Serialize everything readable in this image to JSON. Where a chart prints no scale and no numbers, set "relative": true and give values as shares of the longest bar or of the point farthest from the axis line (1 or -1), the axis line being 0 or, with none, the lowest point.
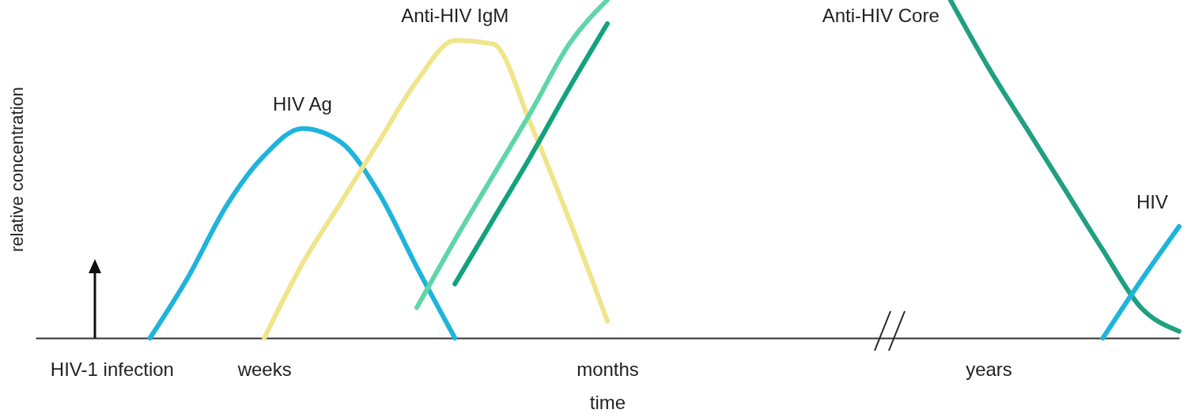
{
  "chart_data": {
    "type": "line",
    "relative": true,
    "xlabel": "time",
    "ylabel": "relative concentration",
    "line_style": "solid",
    "categories": [
      null,
      null,
      "HIV-1 infection",
      null,
      null,
      null,
      "weeks",
      null,
      null,
      null,
      null,
      null,
      null,
      null,
      null,
      "months",
      null,
      null,
      null,
      null,
      null,
      null,
      null,
      null,
      null,
      "years",
      null,
      null,
      null,
      null,
      null
    ],
    "series": [
      {
        "name": "HIV Ag",
        "color": "#1eb4dc",
        "values": [
          null,
          null,
          null,
          0,
          0.18,
          0.39,
          0.54,
          0.62,
          0.58,
          0.43,
          0.21,
          0,
          null,
          null,
          null,
          null,
          null,
          null,
          null,
          null,
          null,
          null,
          null,
          null,
          null,
          null,
          null,
          null,
          null,
          null,
          null
        ]
      },
      {
        "name": "Anti-HIV IgM",
        "color": "#efe58a",
        "values": [
          null,
          null,
          null,
          null,
          null,
          null,
          0,
          0.22,
          0.4,
          0.58,
          0.76,
          0.88,
          0.87,
          0.63,
          0.35,
          0.05,
          null,
          null,
          null,
          null,
          null,
          null,
          null,
          null,
          null,
          null,
          null,
          null,
          null,
          null,
          null
        ]
      },
      {
        "color": "#5fd6a8",
        "values": [
          null,
          null,
          null,
          null,
          null,
          null,
          null,
          null,
          null,
          null,
          0.09,
          0.29,
          0.48,
          0.67,
          0.87,
          1,
          null,
          null,
          null,
          null,
          null,
          null,
          null,
          null,
          null,
          null,
          null,
          null,
          null,
          null,
          null
        ]
      },
      {
        "color": "#13a27e",
        "values": [
          null,
          null,
          null,
          null,
          null,
          null,
          null,
          null,
          null,
          null,
          null,
          0.16,
          0.35,
          0.54,
          0.74,
          0.93,
          null,
          null,
          null,
          null,
          null,
          null,
          null,
          null,
          null,
          null,
          null,
          null,
          null,
          null,
          null
        ]
      },
      {
        "name": "Anti-HIV Core",
        "color": "#20a080",
        "values": [
          null,
          null,
          null,
          null,
          null,
          null,
          null,
          null,
          null,
          null,
          null,
          null,
          null,
          null,
          null,
          null,
          null,
          null,
          null,
          null,
          null,
          null,
          null,
          null,
          1,
          0.8,
          0.62,
          0.44,
          0.26,
          0.09,
          0.02
        ]
      },
      {
        "name": "HIV",
        "color": "#1eb4dc",
        "values": [
          null,
          null,
          null,
          null,
          null,
          null,
          null,
          null,
          null,
          null,
          null,
          null,
          null,
          null,
          null,
          null,
          null,
          null,
          null,
          null,
          null,
          null,
          null,
          null,
          null,
          null,
          null,
          null,
          0,
          0.17,
          0.33
        ]
      }
    ]
  }
}
